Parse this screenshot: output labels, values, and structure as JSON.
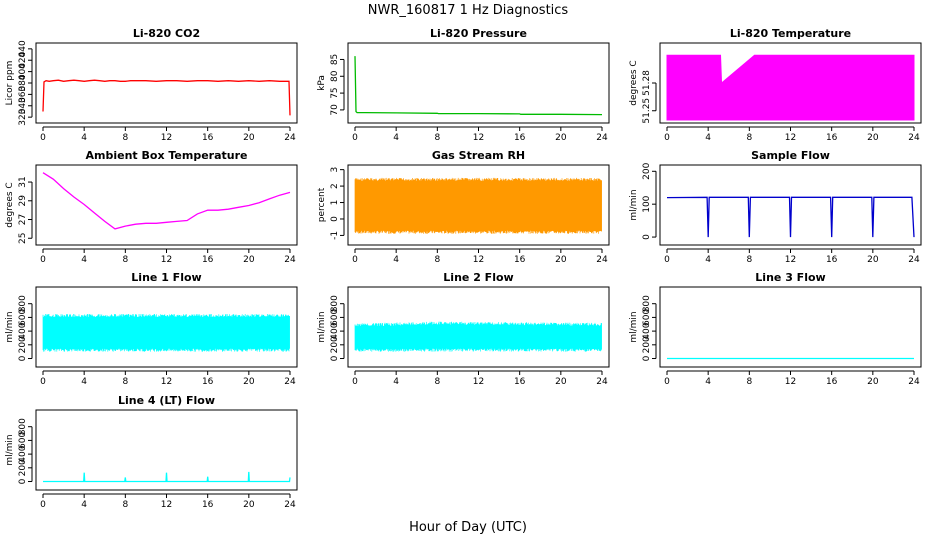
{
  "title": "NWR_160817  1 Hz Diagnostics",
  "xlabel": "Hour of Day (UTC)",
  "chart_data": [
    {
      "type": "line",
      "title": "Li-820 CO2",
      "ylabel": "Licor ppm",
      "color": "#ff0000",
      "x_ticks": [
        0,
        4,
        8,
        12,
        16,
        20,
        24
      ],
      "y_ticks": [
        320,
        340,
        360,
        380,
        400,
        420,
        440
      ],
      "xlim": [
        0,
        24
      ],
      "ylim": [
        315,
        445
      ],
      "series": [
        {
          "x": [
            0,
            0.1,
            0.3,
            0.6,
            1,
            1.5,
            2,
            2.5,
            3,
            3.5,
            4,
            4.5,
            5,
            5.5,
            6,
            6.5,
            7,
            7.5,
            8,
            8.5,
            9,
            10,
            11,
            12,
            13,
            14,
            15,
            16,
            17,
            18,
            19,
            20,
            21,
            22,
            23,
            23.9,
            24
          ],
          "y": [
            330,
            382,
            384,
            383,
            384,
            385,
            383,
            384,
            385,
            384,
            383,
            384,
            385,
            384,
            383,
            384,
            384,
            383,
            383,
            384,
            384,
            384,
            383,
            384,
            384,
            383,
            384,
            384,
            383,
            384,
            383,
            384,
            383,
            384,
            383,
            383,
            323
          ]
        }
      ]
    },
    {
      "type": "line",
      "title": "Li-820 Pressure",
      "ylabel": "kPa",
      "color": "#00bb00",
      "x_ticks": [
        0,
        4,
        8,
        12,
        16,
        20,
        24
      ],
      "y_ticks": [
        70,
        75,
        80,
        85
      ],
      "xlim": [
        0,
        24
      ],
      "ylim": [
        67,
        89
      ],
      "series": [
        {
          "x": [
            0,
            0.1,
            0.2,
            1,
            4,
            8,
            8.1,
            12,
            16,
            16.1,
            20,
            24
          ],
          "y": [
            86,
            69.5,
            69.2,
            69.2,
            69.1,
            69.0,
            68.9,
            68.9,
            68.8,
            68.7,
            68.7,
            68.6
          ]
        }
      ]
    },
    {
      "type": "area",
      "title": "Li-820 Temperature",
      "ylabel": "degrees C",
      "color": "#ff00ff",
      "x_ticks": [
        0,
        4,
        8,
        12,
        16,
        20,
        24
      ],
      "y_ticks": [
        51.25,
        51.28
      ],
      "xlim": [
        0,
        24
      ],
      "ylim": [
        51.24,
        51.32
      ],
      "series": [
        {
          "x": [
            0,
            5.2,
            5.3,
            8.5,
            17.3,
            18.3,
            24
          ],
          "y": [
            51.31,
            51.31,
            51.28,
            51.31,
            51.31,
            51.31,
            51.31
          ]
        }
      ]
    },
    {
      "type": "line",
      "title": "Ambient Box Temperature",
      "ylabel": "degrees C",
      "color": "#ff00ff",
      "x_ticks": [
        0,
        4,
        8,
        12,
        16,
        20,
        24
      ],
      "y_ticks": [
        25,
        27,
        29,
        31
      ],
      "xlim": [
        0,
        24
      ],
      "ylim": [
        24.6,
        32.5
      ],
      "series": [
        {
          "x": [
            0,
            1,
            2,
            3,
            4,
            5,
            6,
            7,
            8,
            9,
            10,
            11,
            12,
            13,
            14,
            15,
            16,
            17,
            18,
            19,
            20,
            21,
            22,
            23,
            24
          ],
          "y": [
            32,
            31.3,
            30.3,
            29.4,
            28.6,
            27.7,
            26.8,
            26.0,
            26.3,
            26.5,
            26.6,
            26.6,
            26.7,
            26.8,
            26.9,
            27.6,
            28.0,
            28.0,
            28.1,
            28.3,
            28.5,
            28.8,
            29.2,
            29.6,
            29.9
          ]
        }
      ]
    },
    {
      "type": "area",
      "title": "Gas Stream RH",
      "ylabel": "percent",
      "color": "#ff9900",
      "x_ticks": [
        0,
        4,
        8,
        12,
        16,
        20,
        24
      ],
      "y_ticks": [
        -1,
        0,
        1,
        2,
        3
      ],
      "xlim": [
        0,
        24
      ],
      "ylim": [
        -1.4,
        3.1
      ],
      "series": [
        {
          "x": [
            0,
            24
          ],
          "y": [
            2.5,
            2.5
          ]
        },
        {
          "x": [
            0,
            24
          ],
          "y": [
            -0.9,
            -0.9
          ]
        }
      ]
    },
    {
      "type": "line",
      "title": "Sample Flow",
      "ylabel": "ml/min",
      "color": "#0000cc",
      "x_ticks": [
        0,
        4,
        8,
        12,
        16,
        20,
        24
      ],
      "y_ticks": [
        0,
        100,
        200
      ],
      "xlim": [
        0,
        24
      ],
      "ylim": [
        -15,
        210
      ],
      "series": [
        {
          "x": [
            0,
            3.9,
            4,
            4.1,
            7.9,
            8,
            8.1,
            11.9,
            12,
            12.1,
            15.9,
            16,
            16.1,
            19.9,
            20,
            20.1,
            23.8,
            24
          ],
          "y": [
            120,
            121,
            0,
            121,
            121,
            0,
            121,
            121,
            0,
            121,
            121,
            0,
            121,
            121,
            0,
            121,
            121,
            0
          ]
        }
      ]
    },
    {
      "type": "area",
      "title": "Line 1 Flow",
      "ylabel": "ml/min",
      "color": "#00ffff",
      "x_ticks": [
        0,
        4,
        8,
        12,
        16,
        20,
        24
      ],
      "y_ticks": [
        0,
        200,
        400,
        600,
        800
      ],
      "xlim": [
        0,
        24
      ],
      "ylim": [
        -80,
        1000
      ],
      "series": [
        {
          "x": [
            0,
            24
          ],
          "y": [
            650,
            650
          ]
        },
        {
          "x": [
            0,
            24
          ],
          "y": [
            100,
            100
          ]
        }
      ]
    },
    {
      "type": "area",
      "title": "Line 2 Flow",
      "ylabel": "ml/min",
      "color": "#00ffff",
      "x_ticks": [
        0,
        4,
        8,
        12,
        16,
        20,
        24
      ],
      "y_ticks": [
        0,
        200,
        400,
        600,
        800
      ],
      "xlim": [
        0,
        24
      ],
      "ylim": [
        -80,
        1000
      ],
      "series": [
        {
          "x": [
            0,
            8,
            24
          ],
          "y": [
            510,
            540,
            520
          ]
        },
        {
          "x": [
            0,
            24
          ],
          "y": [
            100,
            100
          ]
        }
      ]
    },
    {
      "type": "line",
      "title": "Line 3 Flow",
      "ylabel": "ml/min",
      "color": "#00ffff",
      "x_ticks": [
        0,
        4,
        8,
        12,
        16,
        20,
        24
      ],
      "y_ticks": [
        0,
        200,
        400,
        600,
        800
      ],
      "xlim": [
        0,
        24
      ],
      "ylim": [
        -80,
        1000
      ],
      "series": [
        {
          "x": [
            0,
            24
          ],
          "y": [
            0,
            0
          ]
        }
      ]
    },
    {
      "type": "line",
      "title": "Line 4 (LT) Flow",
      "ylabel": "ml/min",
      "color": "#00ffff",
      "x_ticks": [
        0,
        4,
        8,
        12,
        16,
        20,
        24
      ],
      "y_ticks": [
        0,
        200,
        400,
        600,
        800
      ],
      "xlim": [
        0,
        24
      ],
      "ylim": [
        -80,
        1000
      ],
      "series": [
        {
          "x": [
            0,
            3.95,
            4,
            4.05,
            7.95,
            8,
            8.05,
            11.95,
            12,
            12.05,
            15.95,
            16,
            16.05,
            19.95,
            20,
            20.05,
            23.95,
            24
          ],
          "y": [
            0,
            0,
            130,
            0,
            0,
            60,
            0,
            0,
            130,
            0,
            0,
            70,
            0,
            0,
            140,
            0,
            0,
            60
          ]
        }
      ]
    }
  ]
}
